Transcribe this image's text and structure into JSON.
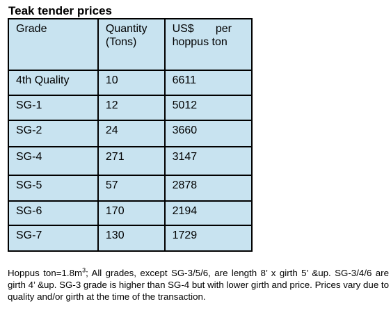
{
  "title": "Teak tender prices",
  "table": {
    "header": [
      "Grade",
      "Quantity (Tons)",
      "US$ per hoppus ton"
    ],
    "rows": [
      [
        "4th Quality",
        10,
        6611
      ],
      [
        "SG-1",
        12,
        5012
      ],
      [
        "SG-2",
        24,
        3660
      ],
      [
        "SG-4",
        271,
        3147
      ],
      [
        "SG-5",
        57,
        2878
      ],
      [
        "SG-6",
        170,
        2194
      ],
      [
        "SG-7",
        130,
        1729
      ]
    ]
  },
  "footnote": {
    "before": "Hoppus ton=1.8m",
    "sup": "3",
    "after": "; All grades, except SG-3/5/6, are length 8’ x girth 5’ &up. SG-3/4/6 are girth 4’ &up. SG-3 grade is higher than SG-4 but with lower girth and price. Prices vary due to quality and/or girth at the time of the transaction."
  }
}
